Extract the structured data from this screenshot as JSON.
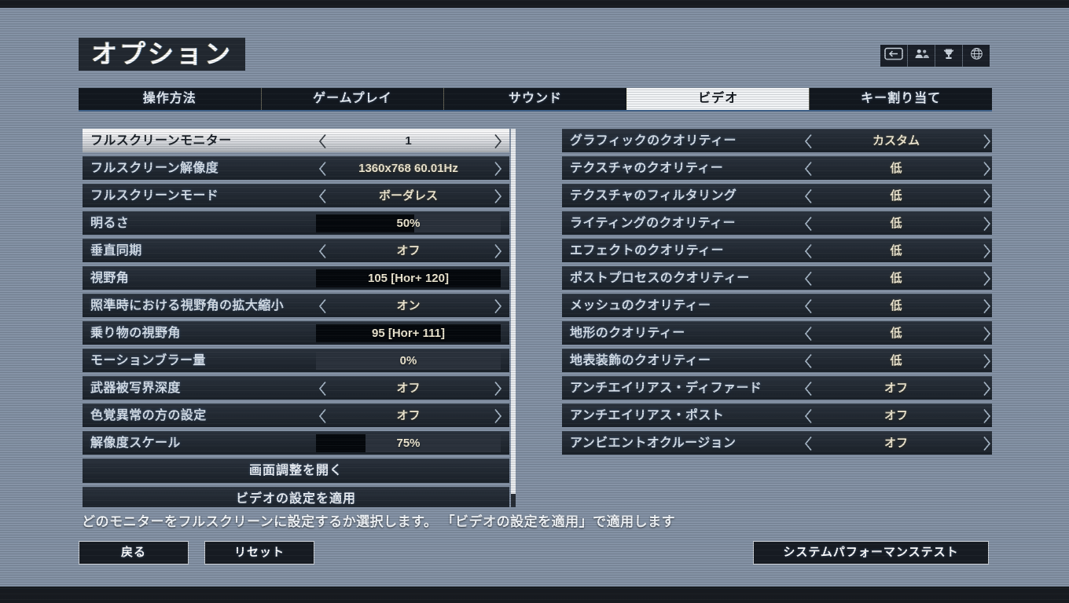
{
  "window": {
    "title": "オプション"
  },
  "header_icons": [
    {
      "name": "back-key-icon"
    },
    {
      "name": "friends-icon"
    },
    {
      "name": "trophy-icon"
    },
    {
      "name": "globe-icon"
    }
  ],
  "tabs": [
    {
      "label": "操作方法",
      "active": false
    },
    {
      "label": "ゲームプレイ",
      "active": false
    },
    {
      "label": "サウンド",
      "active": false
    },
    {
      "label": "ビデオ",
      "active": true
    },
    {
      "label": "キー割り当て",
      "active": false
    }
  ],
  "left_settings": [
    {
      "label": "フルスクリーンモニター",
      "type": "stepper",
      "value": "1",
      "selected": true
    },
    {
      "label": "フルスクリーン解像度",
      "type": "stepper",
      "value": "1360x768 60.01Hz"
    },
    {
      "label": "フルスクリーンモード",
      "type": "stepper",
      "value": "ボーダレス"
    },
    {
      "label": "明るさ",
      "type": "slider",
      "value": "50%",
      "fill": 53
    },
    {
      "label": "垂直同期",
      "type": "stepper",
      "value": "オフ"
    },
    {
      "label": "視野角",
      "type": "slider",
      "value": "105 [Hor+ 120]",
      "fill": 100
    },
    {
      "label": "照準時における視野角の拡大縮小",
      "type": "stepper",
      "value": "オン"
    },
    {
      "label": "乗り物の視野角",
      "type": "slider",
      "value": "95 [Hor+ 111]",
      "fill": 100
    },
    {
      "label": "モーションブラー量",
      "type": "slider",
      "value": "0%",
      "fill": 0
    },
    {
      "label": "武器被写界深度",
      "type": "stepper",
      "value": "オフ"
    },
    {
      "label": "色覚異常の方の設定",
      "type": "stepper",
      "value": "オフ"
    },
    {
      "label": "解像度スケール",
      "type": "slider",
      "value": "75%",
      "fill": 27
    }
  ],
  "left_buttons": [
    {
      "label": "画面調整を開く"
    },
    {
      "label": "ビデオの設定を適用"
    }
  ],
  "right_settings": [
    {
      "label": "グラフィックのクオリティー",
      "type": "stepper",
      "value": "カスタム"
    },
    {
      "label": "テクスチャのクオリティー",
      "type": "stepper",
      "value": "低"
    },
    {
      "label": "テクスチャのフィルタリング",
      "type": "stepper",
      "value": "低"
    },
    {
      "label": "ライティングのクオリティー",
      "type": "stepper",
      "value": "低"
    },
    {
      "label": "エフェクトのクオリティー",
      "type": "stepper",
      "value": "低"
    },
    {
      "label": "ポストプロセスのクオリティー",
      "type": "stepper",
      "value": "低"
    },
    {
      "label": "メッシュのクオリティー",
      "type": "stepper",
      "value": "低"
    },
    {
      "label": "地形のクオリティー",
      "type": "stepper",
      "value": "低"
    },
    {
      "label": "地表装飾のクオリティー",
      "type": "stepper",
      "value": "低"
    },
    {
      "label": "アンチエイリアス・ディファード",
      "type": "stepper",
      "value": "オフ"
    },
    {
      "label": "アンチエイリアス・ポスト",
      "type": "stepper",
      "value": "オフ"
    },
    {
      "label": "アンビエントオクルージョン",
      "type": "stepper",
      "value": "オフ"
    }
  ],
  "help_text": "どのモニターをフルスクリーンに設定するか選択します。 「ビデオの設定を適用」で適用します",
  "footer": {
    "back_label": "戻る",
    "reset_label": "リセット",
    "perf_label": "システムパフォーマンステスト"
  },
  "colors": {
    "background": "#8492a5",
    "row_bg": "#1d242d",
    "active_tab_bg": "#f2f4f6",
    "selected_row_bg": "#ffffff",
    "label_text": "#d6dfe9",
    "value_text": "#efe8d2",
    "slider_fill": "#04070b",
    "tab_underline": "#3c608a"
  }
}
